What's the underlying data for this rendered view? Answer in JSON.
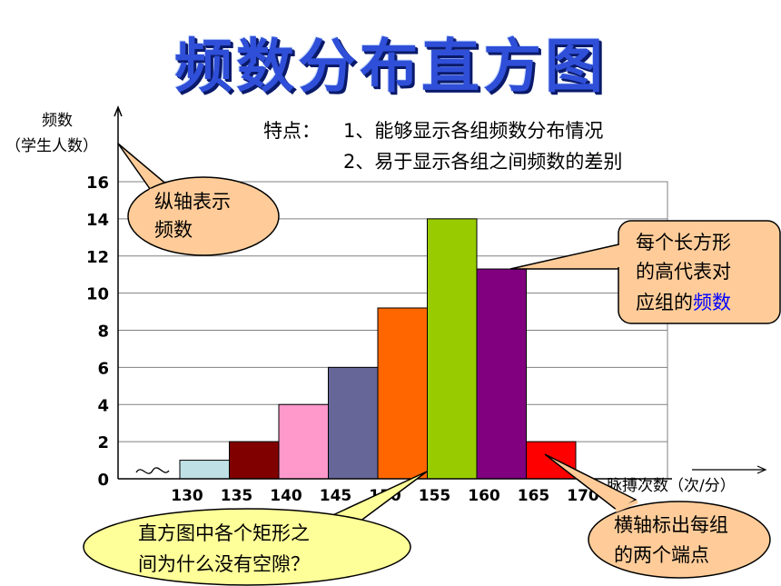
{
  "title": "频数分布直方图",
  "features": {
    "label": "特点：",
    "items": [
      "1、能够显示各组频数分布情况",
      "2、易于显示各组之间频数的差别"
    ]
  },
  "axis": {
    "ylabel_line1": "频数",
    "ylabel_line2": "（学生人数）",
    "xlabel": "脉搏次数（次/分）"
  },
  "chart_data": {
    "type": "bar",
    "histogram": true,
    "y_ticks": [
      0,
      2,
      4,
      6,
      8,
      10,
      12,
      14,
      16
    ],
    "ylim": [
      0,
      16
    ],
    "x_tick_labels": [
      "130",
      "135",
      "140",
      "145",
      "150",
      "155",
      "160",
      "165",
      "170"
    ],
    "bins": [
      {
        "from": 130,
        "to": 135,
        "value": 1,
        "color": "#bfe0e4"
      },
      {
        "from": 135,
        "to": 140,
        "value": 2,
        "color": "#800000"
      },
      {
        "from": 140,
        "to": 145,
        "value": 4,
        "color": "#ff99cc"
      },
      {
        "from": 145,
        "to": 150,
        "value": 6,
        "color": "#666699"
      },
      {
        "from": 150,
        "to": 155,
        "value": 9.2,
        "color": "#ff6600"
      },
      {
        "from": 155,
        "to": 160,
        "value": 14,
        "color": "#99cc00"
      },
      {
        "from": 160,
        "to": 165,
        "value": 11.3,
        "color": "#800080"
      },
      {
        "from": 165,
        "to": 170,
        "value": 2,
        "color": "#ff0000"
      }
    ],
    "grid": true,
    "axis_break": true
  },
  "callouts": {
    "y_axis": [
      "纵轴表示",
      "频数"
    ],
    "bar_height": {
      "lines": [
        "每个长方形",
        "的高代表对"
      ],
      "last_prefix": "应组的",
      "last_highlight": "频数",
      "highlight_color": "#0000ff"
    },
    "no_gap": [
      "直方图中各个矩形之",
      "间为什么没有空隙？"
    ],
    "x_axis": [
      "横轴标出每组",
      "的两个端点"
    ]
  },
  "colors": {
    "callout_fill": "#ffcc99",
    "callout_fill_yellow": "#ffff99",
    "title_blue": "#2f4fd8"
  }
}
